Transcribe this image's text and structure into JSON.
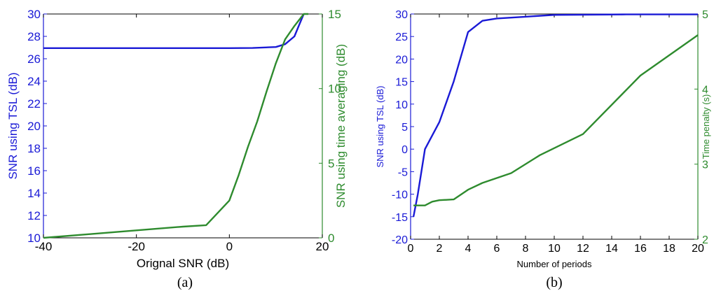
{
  "colors": {
    "blue": "#1a1ad6",
    "green": "#2e8b2e",
    "axis": "#000000"
  },
  "chart_data": [
    {
      "type": "line",
      "caption": "(a)",
      "xlabel": "Orignal SNR (dB)",
      "ylabel_left": "SNR using TSL (dB)",
      "ylabel_right": "SNR using time averaging (dB)",
      "xlim": [
        -40,
        20
      ],
      "ylim_left": [
        10,
        30
      ],
      "ylim_right": [
        0,
        15
      ],
      "x_ticks": [
        "-40",
        "-20",
        "0",
        "20"
      ],
      "y_left_ticks": [
        "10",
        "12",
        "14",
        "16",
        "18",
        "20",
        "22",
        "24",
        "26",
        "28",
        "30"
      ],
      "y_right_ticks": [
        "0",
        "5",
        "10",
        "15"
      ],
      "grid": false,
      "series": [
        {
          "axis": "left",
          "color": "#1a1ad6",
          "x": [
            -40,
            -30,
            -20,
            -10,
            0,
            5,
            10,
            12,
            14,
            15,
            16
          ],
          "y": [
            26.95,
            26.95,
            26.95,
            26.95,
            26.95,
            26.96,
            27.05,
            27.3,
            28.0,
            29.0,
            30.0
          ]
        },
        {
          "axis": "right",
          "color": "#2e8b2e",
          "x": [
            -40,
            -30,
            -20,
            -10,
            -5,
            0,
            2,
            4,
            6,
            8,
            10,
            12,
            14,
            16,
            17
          ],
          "y": [
            0,
            0.25,
            0.5,
            0.75,
            0.85,
            2.5,
            4.2,
            6.1,
            7.8,
            9.8,
            11.7,
            13.3,
            14.2,
            15.0,
            15.0
          ]
        }
      ]
    },
    {
      "type": "line",
      "caption": "(b)",
      "xlabel": "Number of periods",
      "ylabel_left": "SNR using TSL (dB)",
      "ylabel_right": "Time penalty (s)",
      "xlim": [
        0,
        20
      ],
      "ylim_left": [
        -20,
        30
      ],
      "ylim_right": [
        2,
        5
      ],
      "x_ticks": [
        "0",
        "2",
        "4",
        "6",
        "8",
        "10",
        "12",
        "14",
        "16",
        "18",
        "20"
      ],
      "y_left_ticks": [
        "-20",
        "-15",
        "-10",
        "-5",
        "0",
        "5",
        "10",
        "15",
        "20",
        "25",
        "30"
      ],
      "y_right_ticks": [
        "2",
        "3",
        "4",
        "5"
      ],
      "grid": false,
      "series": [
        {
          "axis": "left",
          "color": "#1a1ad6",
          "x": [
            0.2,
            0.5,
            1,
            2,
            3,
            4,
            5,
            6,
            8,
            10,
            15,
            20
          ],
          "y": [
            -15,
            -10,
            0,
            6,
            15,
            26,
            28.5,
            29,
            29.4,
            29.8,
            29.9,
            29.9
          ]
        },
        {
          "axis": "right",
          "color": "#2e8b2e",
          "x": [
            0.2,
            1,
            1.5,
            2,
            3,
            4,
            5,
            7,
            9,
            12,
            16,
            20
          ],
          "y": [
            2.45,
            2.45,
            2.5,
            2.52,
            2.53,
            2.66,
            2.75,
            2.88,
            3.12,
            3.4,
            4.18,
            4.72
          ]
        }
      ]
    }
  ]
}
